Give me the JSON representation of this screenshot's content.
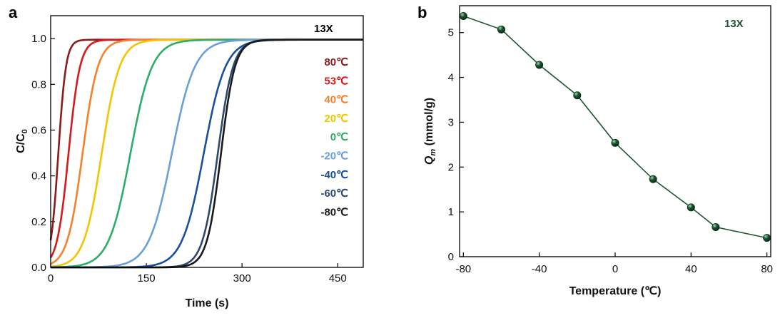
{
  "chart_data": [
    {
      "panel_label": "a",
      "type": "line",
      "xlabel": "Time (s)",
      "ylabel": "C/C0",
      "ylabel_main": "C/C",
      "ylabel_sub": "0",
      "xlim": [
        0,
        490
      ],
      "ylim": [
        0,
        1.1
      ],
      "xticks": [
        0,
        150,
        300,
        450
      ],
      "xtick_labels": [
        "0",
        "150",
        "300",
        "450"
      ],
      "yticks": [
        0,
        0.2,
        0.4,
        0.6,
        0.8,
        1.0
      ],
      "ytick_labels": [
        "0.0",
        "0.2",
        "0.4",
        "0.6",
        "0.8",
        "1.0"
      ],
      "annotation": "13X",
      "legend_position": "right",
      "series": [
        {
          "name": "80℃",
          "color": "#8B1A1A",
          "midpoint": 12,
          "width": 6
        },
        {
          "name": "53℃",
          "color": "#D7191C",
          "midpoint": 28,
          "width": 9
        },
        {
          "name": "40℃",
          "color": "#F4812C",
          "midpoint": 50,
          "width": 12
        },
        {
          "name": "20℃",
          "color": "#F5C400",
          "midpoint": 80,
          "width": 14
        },
        {
          "name": "0℃",
          "color": "#2DAE68",
          "midpoint": 125,
          "width": 17
        },
        {
          "name": "-20℃",
          "color": "#6B9FD8",
          "midpoint": 190,
          "width": 18
        },
        {
          "name": "-40℃",
          "color": "#1A4F9F",
          "midpoint": 240,
          "width": 17
        },
        {
          "name": "-60℃",
          "color": "#2B4A6F",
          "midpoint": 262,
          "width": 12
        },
        {
          "name": "-80℃",
          "color": "#1A1A1A",
          "midpoint": 267,
          "width": 11
        }
      ]
    },
    {
      "panel_label": "b",
      "type": "line",
      "xlabel": "Temperature (℃)",
      "ylabel": "Qm (mmol/g)",
      "ylabel_q": "Q",
      "ylabel_sub": "m",
      "ylabel_rest": " (mmol/g)",
      "xlim": [
        -82,
        82
      ],
      "ylim": [
        0,
        5.6
      ],
      "xticks": [
        -80,
        -40,
        0,
        40,
        80
      ],
      "xtick_labels": [
        "-80",
        "-40",
        "0",
        "40",
        "80"
      ],
      "yticks": [
        0,
        1,
        2,
        3,
        4,
        5
      ],
      "ytick_labels": [
        "0",
        "1",
        "2",
        "3",
        "4",
        "5"
      ],
      "annotation": "13X",
      "color": "#1E5631",
      "x": [
        -80,
        -60,
        -40,
        -20,
        0,
        20,
        40,
        53,
        80
      ],
      "y": [
        5.37,
        5.07,
        4.28,
        3.6,
        2.54,
        1.73,
        1.1,
        0.66,
        0.42
      ]
    }
  ]
}
